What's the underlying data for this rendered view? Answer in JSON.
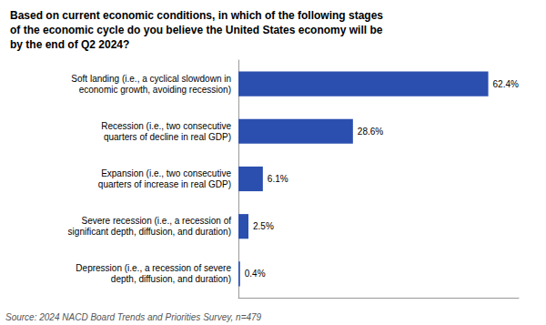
{
  "chart_data": {
    "type": "bar",
    "orientation": "horizontal",
    "title": "Based on current economic conditions, in which of the following stages\nof the economic cycle do you believe the United States economy will be\nby the end of Q2 2024?",
    "categories": [
      "Soft landing (i.e., a cyclical slowdown in\neconomic growth, avoiding recession)",
      "Recession (i.e., two consecutive\nquarters of decline in real GDP)",
      "Expansion (i.e., two consecutive\nquarters of increase in real GDP)",
      "Severe recession (i.e., a recession of\nsignificant depth, diffusion, and duration)",
      "Depression (i.e., a recession of severe\ndepth, diffusion, and duration)"
    ],
    "values": [
      62.4,
      28.6,
      6.1,
      2.5,
      0.4
    ],
    "value_labels": [
      "62.4%",
      "28.6%",
      "6.1%",
      "2.5%",
      "0.4%"
    ],
    "data_labels": true,
    "color": "#2B4FAF",
    "xlim": [
      0,
      70
    ],
    "grid": false,
    "tick_labels": "y",
    "annotations": [
      "Source: 2024 NACD Board Trends and Priorities Survey, n=479"
    ]
  }
}
